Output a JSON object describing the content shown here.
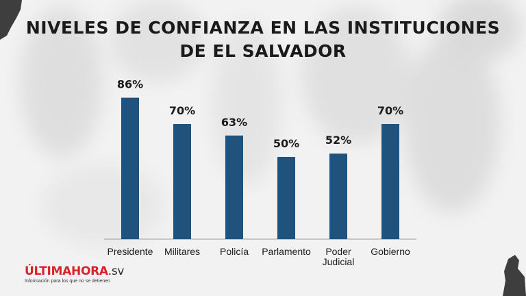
{
  "header": {
    "title_line1": "NIVELES DE CONFIANZA EN LAS INSTITUCIONES",
    "title_line2": "DE EL SALVADOR"
  },
  "logo": {
    "main": "ÚLTIMAHORA",
    "suffix": ".sv",
    "tagline": "Información para los que no se detienen"
  },
  "chart_data": {
    "type": "bar",
    "title": "NIVELES DE CONFIANZA EN LAS INSTITUCIONES DE EL SALVADOR",
    "categories": [
      [
        "Presidente"
      ],
      [
        "Militares"
      ],
      [
        "Policía"
      ],
      [
        "Parlamento"
      ],
      [
        "Poder",
        "Judicial"
      ],
      [
        "Gobierno"
      ]
    ],
    "values": [
      86,
      70,
      63,
      50,
      52,
      70
    ],
    "value_labels": [
      "86%",
      "70%",
      "63%",
      "50%",
      "52%",
      "70%"
    ],
    "ylim": [
      0,
      100
    ],
    "grid": false,
    "bar_color": "#20527e",
    "accent_color": "#d8232a"
  }
}
